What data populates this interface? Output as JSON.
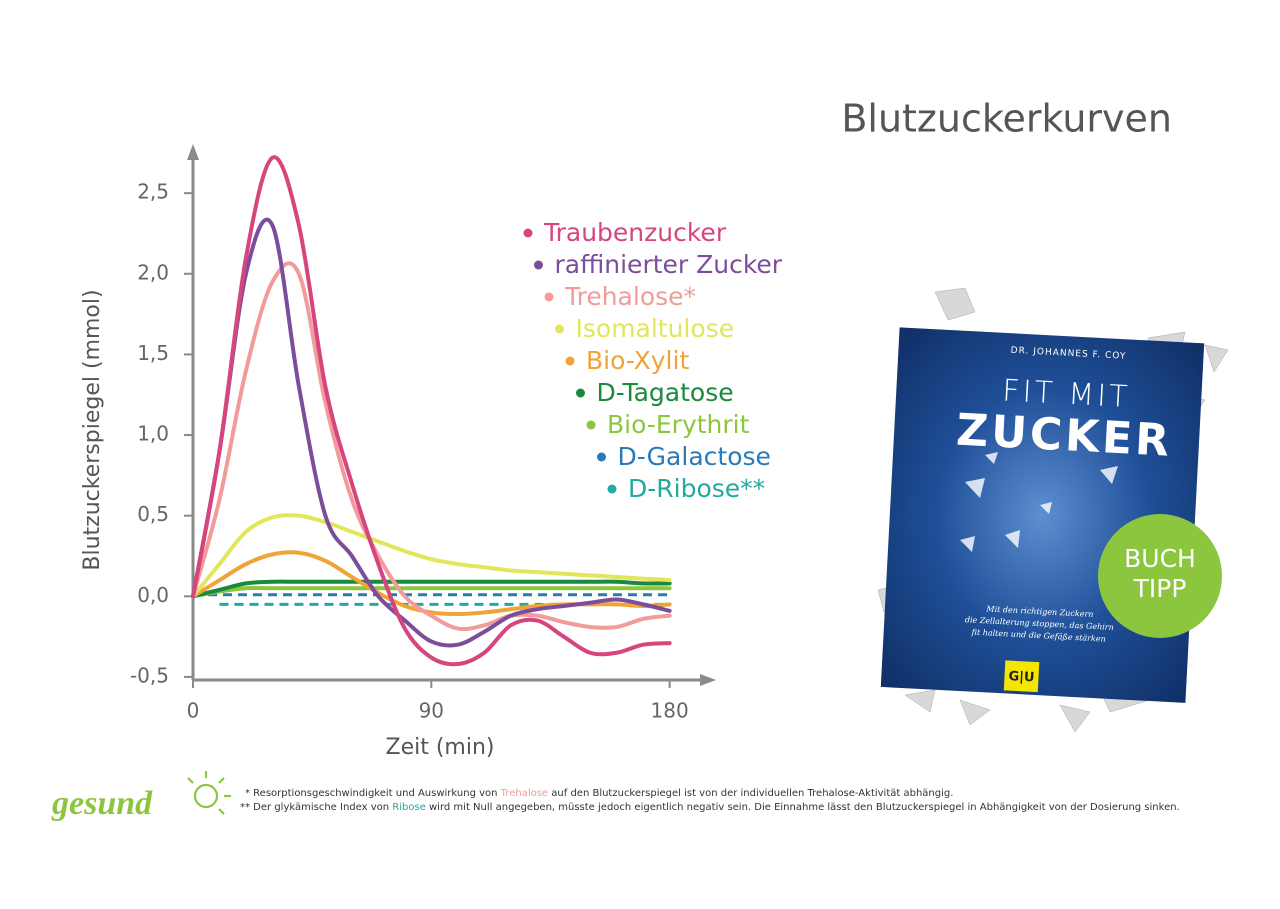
{
  "chart_data": {
    "type": "line",
    "title": "Blutzuckerkurven",
    "x_label": "Zeit (min)",
    "y_label": "Blutzuckerspiegel (mmol)",
    "x": [
      0,
      10,
      20,
      30,
      40,
      50,
      60,
      70,
      80,
      90,
      100,
      110,
      120,
      130,
      140,
      150,
      160,
      170,
      180
    ],
    "xlim": [
      0,
      196
    ],
    "ylim": [
      -0.55,
      2.78
    ],
    "xticks": [
      0,
      90,
      180
    ],
    "yticks": [
      {
        "value": -0.5,
        "label": "-0,5"
      },
      {
        "value": 0,
        "label": "0,0"
      },
      {
        "value": 0.5,
        "label": "0,5"
      },
      {
        "value": 1,
        "label": "1,0"
      },
      {
        "value": 1.5,
        "label": "1,5"
      },
      {
        "value": 2,
        "label": "2,0"
      },
      {
        "value": 2.5,
        "label": "2,5"
      }
    ],
    "series": [
      {
        "name": "Traubenzucker",
        "color": "#d6457e",
        "values": [
          0,
          0.9,
          2.1,
          2.72,
          2.3,
          1.3,
          0.7,
          0.2,
          -0.2,
          -0.38,
          -0.42,
          -0.35,
          -0.18,
          -0.15,
          -0.25,
          -0.35,
          -0.35,
          -0.3,
          -0.29
        ]
      },
      {
        "name": "raffinierter Zucker",
        "color": "#7b4d9b",
        "values": [
          0,
          0.9,
          2.0,
          2.3,
          1.3,
          0.5,
          0.25,
          0.0,
          -0.15,
          -0.28,
          -0.3,
          -0.22,
          -0.12,
          -0.08,
          -0.06,
          -0.04,
          -0.02,
          -0.05,
          -0.09
        ]
      },
      {
        "name": "Trehalose*",
        "color": "#f29b9b",
        "values": [
          0,
          0.6,
          1.4,
          1.95,
          2.0,
          1.2,
          0.6,
          0.25,
          0.0,
          -0.12,
          -0.2,
          -0.18,
          -0.12,
          -0.12,
          -0.16,
          -0.19,
          -0.19,
          -0.14,
          -0.12
        ]
      },
      {
        "name": "Isomaltulose",
        "color": "#e3e55a",
        "values": [
          0,
          0.2,
          0.4,
          0.49,
          0.5,
          0.46,
          0.4,
          0.34,
          0.28,
          0.23,
          0.2,
          0.18,
          0.16,
          0.15,
          0.14,
          0.13,
          0.12,
          0.11,
          0.1
        ]
      },
      {
        "name": "Bio-Xylit",
        "color": "#f0a336",
        "values": [
          0,
          0.1,
          0.2,
          0.26,
          0.27,
          0.22,
          0.12,
          0.02,
          -0.06,
          -0.1,
          -0.11,
          -0.1,
          -0.08,
          -0.06,
          -0.05,
          -0.05,
          -0.05,
          -0.06,
          -0.05
        ]
      },
      {
        "name": "D-Tagatose",
        "color": "#1a8a3c",
        "values": [
          0,
          0.04,
          0.08,
          0.09,
          0.09,
          0.09,
          0.09,
          0.09,
          0.09,
          0.09,
          0.09,
          0.09,
          0.09,
          0.09,
          0.09,
          0.09,
          0.09,
          0.08,
          0.08
        ]
      },
      {
        "name": "Bio-Erythrit",
        "color": "#8cc63f",
        "values": [
          0,
          0.03,
          0.05,
          0.05,
          0.05,
          0.05,
          0.05,
          0.05,
          0.05,
          0.05,
          0.05,
          0.05,
          0.05,
          0.05,
          0.05,
          0.05,
          0.05,
          0.05,
          0.05
        ]
      },
      {
        "name": "D-Galactose",
        "color": "#2a7ab8",
        "dashed": true,
        "values": [
          0.01,
          0.01,
          0.01,
          0.01,
          0.01,
          0.01,
          0.01,
          0.01,
          0.01,
          0.01,
          0.01,
          0.01,
          0.01,
          0.01,
          0.01,
          0.01,
          0.01,
          0.01,
          0.01
        ]
      },
      {
        "name": "D-Ribose**",
        "color": "#22a9a0",
        "dashed": true,
        "values": [
          null,
          -0.05,
          -0.05,
          -0.05,
          -0.05,
          -0.05,
          -0.05,
          -0.05,
          -0.05,
          -0.05,
          -0.05,
          -0.05,
          -0.05,
          -0.05,
          -0.05,
          -0.05,
          -0.05,
          -0.05,
          -0.05
        ]
      }
    ]
  },
  "book": {
    "author": "DR. JOHANNES F. COY",
    "title_1": "FIT MIT",
    "title_2": "ZUCKER",
    "subtitle": [
      "Mit den richtigen Zuckern",
      "die Zellalterung stoppen, das Gehirn",
      "fit halten und die Gefäße stärken"
    ],
    "publisher": "G|U"
  },
  "badge": [
    "BUCH",
    "TIPP"
  ],
  "logo": "gesund",
  "footnotes": [
    {
      "parts": [
        "* Resorptionsgeschwindigkeit und Auswirkung von ",
        "Trehalose",
        " auf den Blutzuckerspiegel ist von der individuellen Trehalose-Aktivität abhängig."
      ]
    },
    {
      "parts": [
        "** Der glykämische Index von ",
        "Ribose",
        " wird mit Null angegeben, müsste jedoch eigentlich negativ sein. Die Einnahme lässt den Blutzuckerspiegel in Abhängigkeit von der Dosierung sinken."
      ]
    }
  ]
}
